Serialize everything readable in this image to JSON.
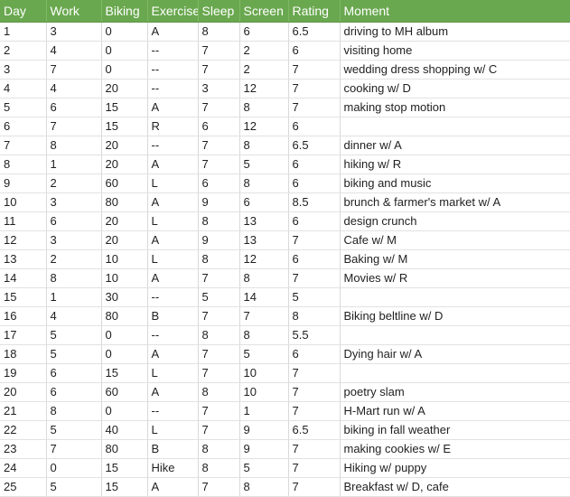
{
  "header": {
    "columns": [
      "Day",
      "Work",
      "Biking",
      "Exercise",
      "Sleep",
      "Screen",
      "Rating",
      "Moment"
    ]
  },
  "colors": {
    "header_background": "#6aa84f",
    "header_text": "#ffffff",
    "gridline": "#d9d9d9"
  },
  "rows": [
    [
      "1",
      "3",
      "0",
      "A",
      "8",
      "6",
      "6.5",
      "driving to MH album"
    ],
    [
      "2",
      "4",
      "0",
      "--",
      "7",
      "2",
      "6",
      "visiting home"
    ],
    [
      "3",
      "7",
      "0",
      "--",
      "7",
      "2",
      "7",
      "wedding dress shopping w/ C"
    ],
    [
      "4",
      "4",
      "20",
      "--",
      "3",
      "12",
      "7",
      "cooking w/ D"
    ],
    [
      "5",
      "6",
      "15",
      "A",
      "7",
      "8",
      "7",
      "making stop motion"
    ],
    [
      "6",
      "7",
      "15",
      "R",
      "6",
      "12",
      "6",
      ""
    ],
    [
      "7",
      "8",
      "20",
      "--",
      "7",
      "8",
      "6.5",
      "dinner w/ A"
    ],
    [
      "8",
      "1",
      "20",
      "A",
      "7",
      "5",
      "6",
      "hiking w/ R"
    ],
    [
      "9",
      "2",
      "60",
      "L",
      "6",
      "8",
      "6",
      "biking and music"
    ],
    [
      "10",
      "3",
      "80",
      "A",
      "9",
      "6",
      "8.5",
      "brunch & farmer's market w/ A"
    ],
    [
      "11",
      "6",
      "20",
      "L",
      "8",
      "13",
      "6",
      "design crunch"
    ],
    [
      "12",
      "3",
      "20",
      "A",
      "9",
      "13",
      "7",
      "Cafe w/ M"
    ],
    [
      "13",
      "2",
      "10",
      "L",
      "8",
      "12",
      "6",
      "Baking w/ M"
    ],
    [
      "14",
      "8",
      "10",
      "A",
      "7",
      "8",
      "7",
      "Movies w/ R"
    ],
    [
      "15",
      "1",
      "30",
      "--",
      "5",
      "14",
      "5",
      ""
    ],
    [
      "16",
      "4",
      "80",
      "B",
      "7",
      "7",
      "8",
      "Biking beltline w/ D"
    ],
    [
      "17",
      "5",
      "0",
      "--",
      "8",
      "8",
      "5.5",
      ""
    ],
    [
      "18",
      "5",
      "0",
      "A",
      "7",
      "5",
      "6",
      "Dying hair w/ A"
    ],
    [
      "19",
      "6",
      "15",
      "L",
      "7",
      "10",
      "7",
      ""
    ],
    [
      "20",
      "6",
      "60",
      "A",
      "8",
      "10",
      "7",
      "poetry slam"
    ],
    [
      "21",
      "8",
      "0",
      "--",
      "7",
      "1",
      "7",
      "H-Mart run w/ A"
    ],
    [
      "22",
      "5",
      "40",
      "L",
      "7",
      "9",
      "6.5",
      "biking in fall weather"
    ],
    [
      "23",
      "7",
      "80",
      "B",
      "8",
      "9",
      "7",
      "making cookies w/ E"
    ],
    [
      "24",
      "0",
      "15",
      "Hike",
      "8",
      "5",
      "7",
      "Hiking w/ puppy"
    ],
    [
      "25",
      "5",
      "15",
      "A",
      "7",
      "8",
      "7",
      "Breakfast w/ D, cafe"
    ]
  ]
}
